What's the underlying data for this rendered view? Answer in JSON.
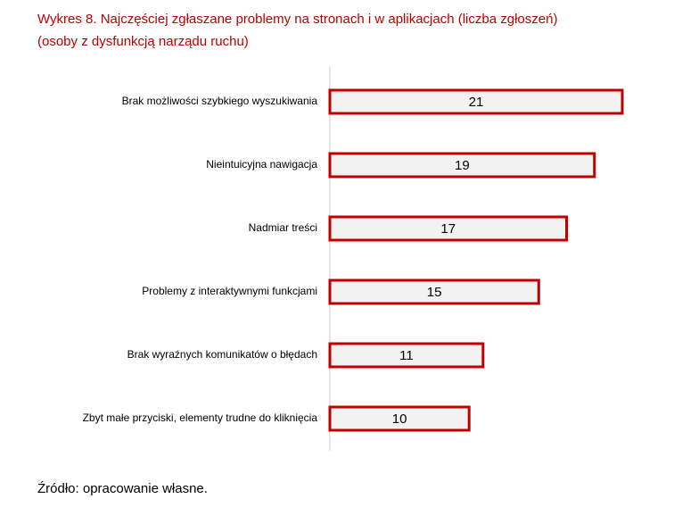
{
  "chart_data": {
    "type": "bar",
    "orientation": "horizontal",
    "title": "Wykres 8. Najczęściej zgłaszane problemy na stronach i w aplikacjach (liczba zgłoszeń)",
    "subtitle": "(osoby z dysfunkcją narządu ruchu)",
    "categories": [
      "Brak możliwości szybkiego wyszukiwania",
      "Nieintuicyjna nawigacja",
      "Nadmiar treści",
      "Problemy z interaktywnymi funkcjami",
      "Brak wyraźnych komunikatów o błędach",
      "Zbyt małe przyciski, elementy trudne do kliknięcia"
    ],
    "values": [
      21,
      19,
      17,
      15,
      11,
      10
    ],
    "color": "#f2f2f2",
    "edgecolor": "#c00000",
    "source": "Źródło: opracowanie własne."
  }
}
